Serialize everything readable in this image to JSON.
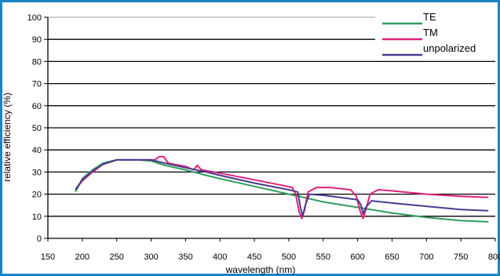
{
  "chart_data": {
    "type": "line",
    "title": "",
    "xlabel": "wavelength (nm)",
    "ylabel": "relative efficiency (%)",
    "xlim": [
      150,
      800
    ],
    "ylim": [
      0,
      100
    ],
    "x_ticks": [
      "150",
      "200",
      "250",
      "300",
      "350",
      "400",
      "450",
      "500",
      "550",
      "600",
      "650",
      "700",
      "750",
      "800"
    ],
    "y_ticks": [
      "0",
      "10",
      "20",
      "30",
      "40",
      "50",
      "60",
      "70",
      "80",
      "90",
      "100"
    ],
    "grid": true,
    "legend_position": "top-right",
    "series": [
      {
        "name": "TE",
        "color": "#2e9e5a",
        "points": [
          [
            190,
            21
          ],
          [
            200,
            27
          ],
          [
            215,
            31
          ],
          [
            230,
            34
          ],
          [
            250,
            35.5
          ],
          [
            280,
            35.5
          ],
          [
            300,
            35
          ],
          [
            320,
            33
          ],
          [
            350,
            31
          ],
          [
            380,
            28.5
          ],
          [
            400,
            27
          ],
          [
            450,
            23.5
          ],
          [
            500,
            20
          ],
          [
            515,
            19
          ],
          [
            550,
            16.5
          ],
          [
            600,
            14
          ],
          [
            650,
            11.5
          ],
          [
            700,
            9.5
          ],
          [
            750,
            8
          ],
          [
            790,
            7.5
          ]
        ]
      },
      {
        "name": "TM",
        "color": "#e0207a",
        "points": [
          [
            190,
            22
          ],
          [
            200,
            26
          ],
          [
            215,
            30
          ],
          [
            230,
            33.5
          ],
          [
            250,
            35.5
          ],
          [
            280,
            35.5
          ],
          [
            305,
            35.5
          ],
          [
            312,
            37
          ],
          [
            318,
            37
          ],
          [
            325,
            34
          ],
          [
            350,
            32.5
          ],
          [
            362,
            31
          ],
          [
            367,
            33
          ],
          [
            373,
            31
          ],
          [
            400,
            29.5
          ],
          [
            450,
            26.5
          ],
          [
            490,
            24
          ],
          [
            505,
            23
          ],
          [
            510,
            20
          ],
          [
            515,
            12
          ],
          [
            519,
            9
          ],
          [
            523,
            13
          ],
          [
            528,
            21
          ],
          [
            540,
            23
          ],
          [
            560,
            23
          ],
          [
            590,
            22
          ],
          [
            598,
            19
          ],
          [
            604,
            12
          ],
          [
            608,
            9
          ],
          [
            612,
            13
          ],
          [
            618,
            20
          ],
          [
            630,
            22
          ],
          [
            650,
            21.5
          ],
          [
            700,
            20
          ],
          [
            750,
            19
          ],
          [
            790,
            18.5
          ]
        ]
      },
      {
        "name": "unpolarized",
        "color": "#4b3a8c",
        "points": [
          [
            190,
            22
          ],
          [
            200,
            26.5
          ],
          [
            215,
            30.5
          ],
          [
            230,
            33.5
          ],
          [
            250,
            35.5
          ],
          [
            280,
            35.5
          ],
          [
            300,
            35.5
          ],
          [
            320,
            34
          ],
          [
            350,
            32
          ],
          [
            380,
            30
          ],
          [
            400,
            28.5
          ],
          [
            450,
            25
          ],
          [
            500,
            22
          ],
          [
            513,
            21
          ],
          [
            517,
            14
          ],
          [
            520,
            10
          ],
          [
            524,
            15
          ],
          [
            530,
            20
          ],
          [
            550,
            19.5
          ],
          [
            600,
            17.5
          ],
          [
            605,
            15
          ],
          [
            608,
            11
          ],
          [
            612,
            14
          ],
          [
            620,
            17
          ],
          [
            650,
            16
          ],
          [
            700,
            14.5
          ],
          [
            750,
            13
          ],
          [
            790,
            12.5
          ]
        ]
      }
    ]
  }
}
